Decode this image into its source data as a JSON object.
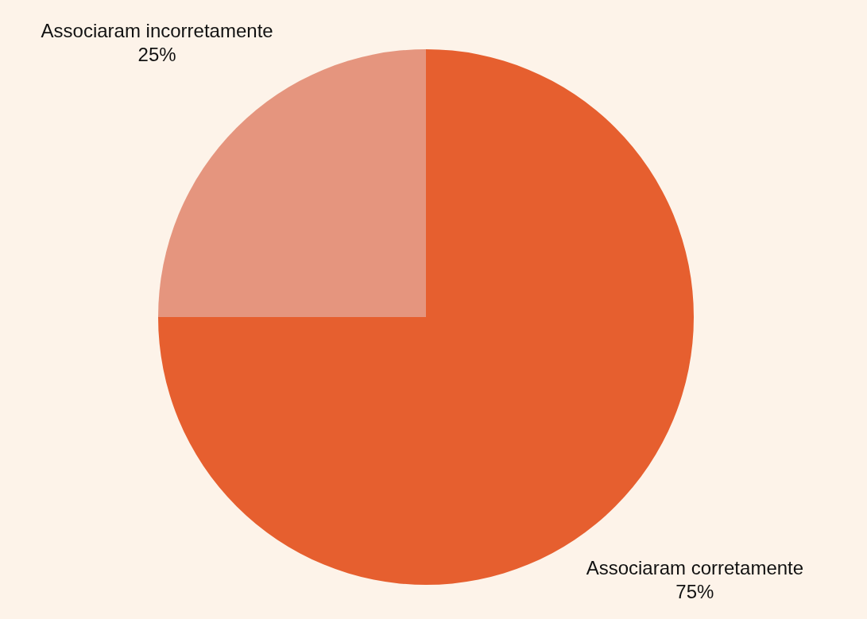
{
  "chart_data": {
    "type": "pie",
    "categories": [
      "Associaram corretamente",
      "Associaram incorretamente"
    ],
    "values": [
      75,
      25
    ],
    "colors": [
      "#e65f2f",
      "#e5957e"
    ],
    "value_labels": [
      "75%",
      "25%"
    ]
  }
}
